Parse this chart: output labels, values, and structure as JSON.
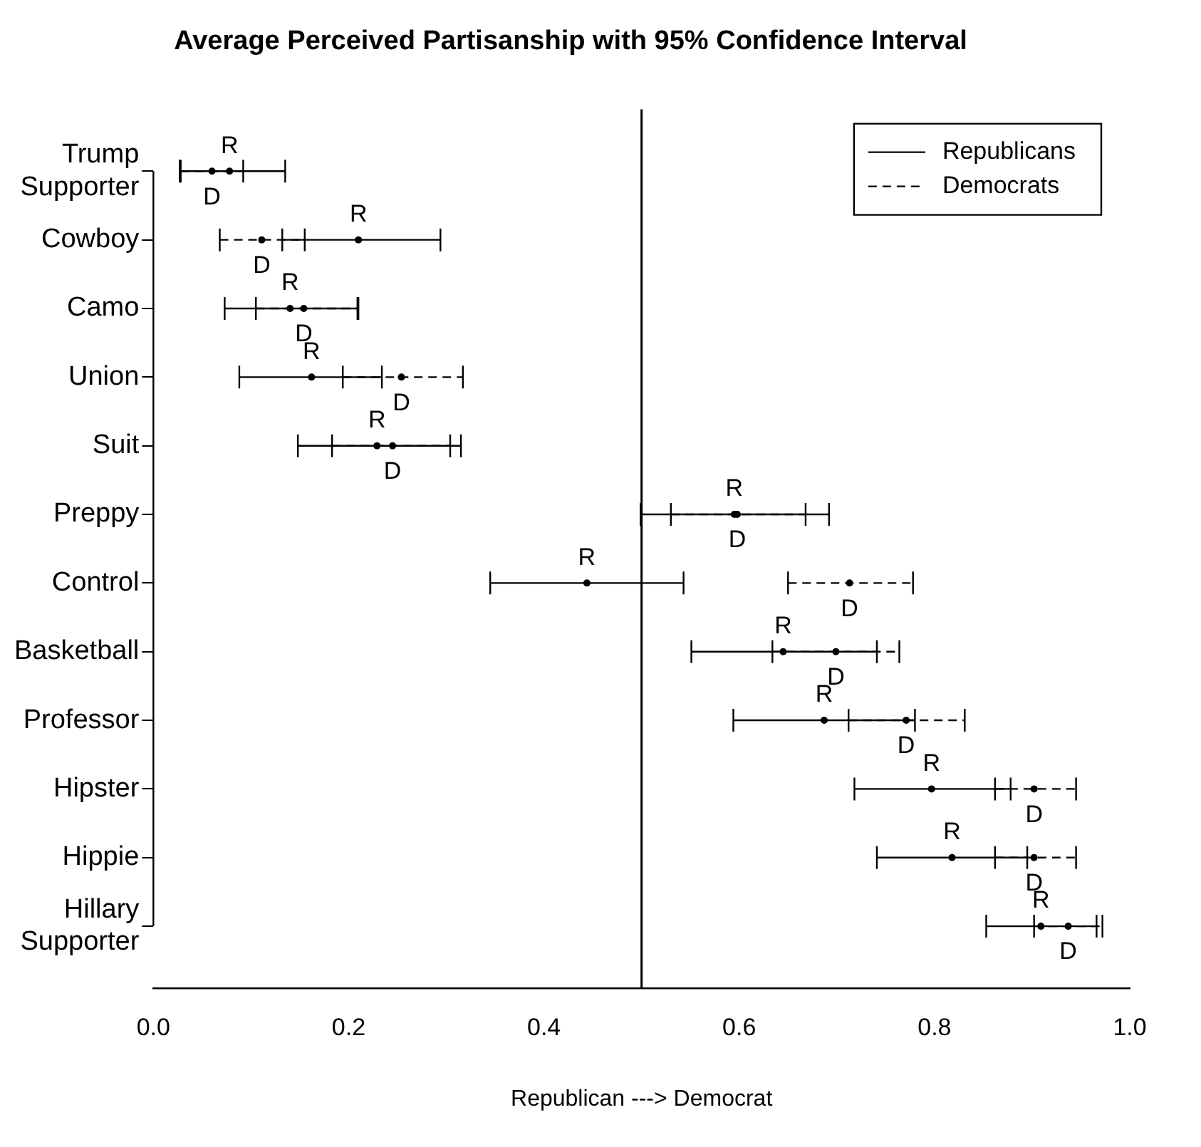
{
  "chart_data": {
    "type": "scatter",
    "title": "Average Perceived Partisanship with 95% Confidence Interval",
    "xlabel": "Republican ---> Democrat",
    "orientation": "horizontal",
    "categories": [
      "Trump Supporter",
      "Cowboy",
      "Camo",
      "Union",
      "Suit",
      "Preppy",
      "Control",
      "Basketball",
      "Professor",
      "Hipster",
      "Hippie",
      "Hillary Supporter"
    ],
    "series": [
      {
        "name": "Republicans",
        "color": "#000000",
        "line_style": "solid",
        "values": [
          0.078,
          0.21,
          0.14,
          0.162,
          0.229,
          0.595,
          0.444,
          0.645,
          0.687,
          0.797,
          0.818,
          0.909
        ],
        "errors": [
          [
            0.027,
            0.135
          ],
          [
            0.132,
            0.294
          ],
          [
            0.073,
            0.209
          ],
          [
            0.088,
            0.234
          ],
          [
            0.148,
            0.315
          ],
          [
            0.499,
            0.692
          ],
          [
            0.345,
            0.543
          ],
          [
            0.551,
            0.741
          ],
          [
            0.594,
            0.78
          ],
          [
            0.718,
            0.878
          ],
          [
            0.741,
            0.895
          ],
          [
            0.853,
            0.966
          ]
        ],
        "value_labels": [
          "R",
          "R",
          "R",
          "R",
          "R",
          "R",
          "R",
          "R",
          "R",
          "R",
          "R",
          "R"
        ]
      },
      {
        "name": "Democrats",
        "color": "#000000",
        "line_style": "dashed",
        "values": [
          0.06,
          0.111,
          0.154,
          0.254,
          0.245,
          0.598,
          0.713,
          0.699,
          0.771,
          0.902,
          0.902,
          0.937
        ],
        "errors": [
          [
            0.028,
            0.092
          ],
          [
            0.068,
            0.155
          ],
          [
            0.105,
            0.21
          ],
          [
            0.194,
            0.317
          ],
          [
            0.183,
            0.304
          ],
          [
            0.53,
            0.668
          ],
          [
            0.65,
            0.778
          ],
          [
            0.634,
            0.764
          ],
          [
            0.712,
            0.831
          ],
          [
            0.862,
            0.945
          ],
          [
            0.862,
            0.945
          ],
          [
            0.902,
            0.972
          ]
        ],
        "value_labels": [
          "D",
          "D",
          "D",
          "D",
          "D",
          "D",
          "D",
          "D",
          "D",
          "D",
          "D",
          "D"
        ]
      }
    ],
    "xlim": [
      0,
      1
    ],
    "xticks": [
      {
        "value": 0,
        "label": "0.0"
      },
      {
        "value": 0.2,
        "label": "0.2"
      },
      {
        "value": 0.4,
        "label": "0.4"
      },
      {
        "value": 0.6,
        "label": "0.6"
      },
      {
        "value": 0.8,
        "label": "0.8"
      },
      {
        "value": 1,
        "label": "1.0"
      }
    ],
    "ref_lines": [
      {
        "axis": "x",
        "value": 0.5,
        "label": null
      }
    ],
    "grid": false,
    "legend": "top right",
    "marker": "circle"
  }
}
